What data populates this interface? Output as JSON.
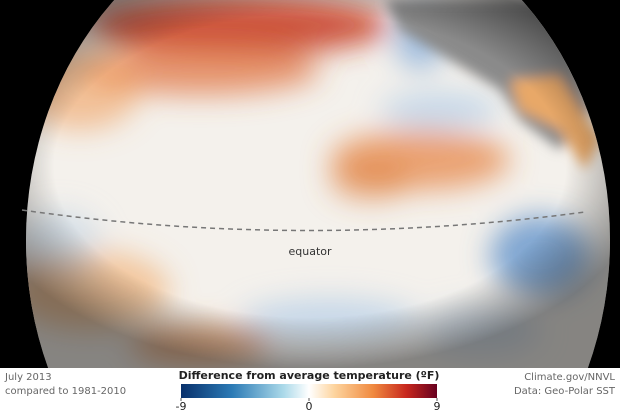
{
  "map": {
    "label": "equator"
  },
  "footer": {
    "date": "July 2013",
    "baseline": "compared to 1981-2010",
    "credit": "Climate.gov/NNVL",
    "source": "Data: Geo-Polar SST"
  },
  "colorbar": {
    "title": "Difference from average temperature (ºF)",
    "ticks": [
      -9,
      0,
      9
    ]
  }
}
